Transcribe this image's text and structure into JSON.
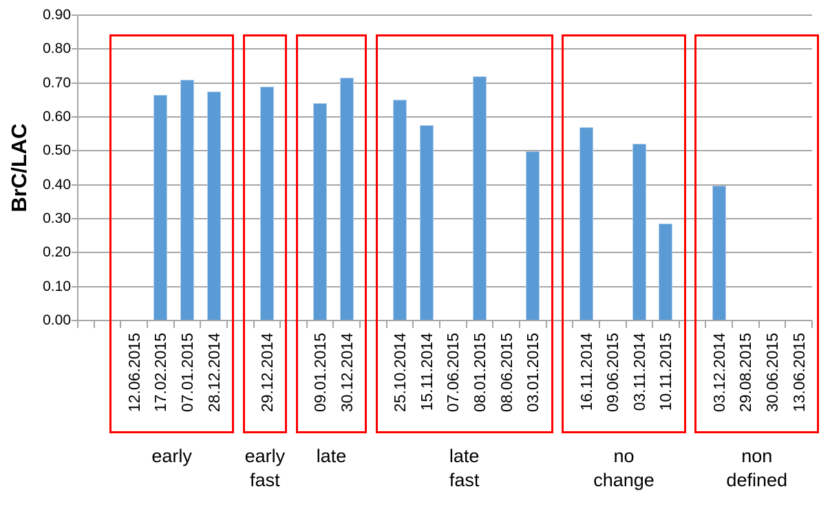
{
  "chart_data": {
    "type": "bar",
    "title": "",
    "xlabel": "",
    "ylabel": "BrC/LAC",
    "ylim": [
      0,
      0.9
    ],
    "ytick_labels": [
      "0.00",
      "0.10",
      "0.20",
      "0.30",
      "0.40",
      "0.50",
      "0.60",
      "0.70",
      "0.80",
      "0.90"
    ],
    "grid": true,
    "legend_position": "none",
    "colors": {
      "bar_fill": "#5B9BD5",
      "bar_border": "#AECDEA",
      "group_box": "#FF0000",
      "axis_gray": "#A6A6A6",
      "text": "#000000"
    },
    "groups": [
      {
        "label": "early",
        "label_lines": [
          "early"
        ],
        "categories": [
          "12.06.2015",
          "17.02.2015",
          "07.01.2015",
          "28.12.2014"
        ],
        "values": [
          0,
          0.665,
          0.71,
          0.675
        ]
      },
      {
        "label": "early fast",
        "label_lines": [
          "early",
          "fast"
        ],
        "categories": [
          "29.12.2014"
        ],
        "values": [
          0.69
        ]
      },
      {
        "label": "late",
        "label_lines": [
          "late"
        ],
        "categories": [
          "09.01.2015",
          "30.12.2014"
        ],
        "values": [
          0.64,
          0.715
        ]
      },
      {
        "label": "late fast",
        "label_lines": [
          "late",
          "fast"
        ],
        "categories": [
          "25.10.2014",
          "15.11.2014",
          "07.06.2015",
          "08.01.2015",
          "08.06.2015",
          "03.01.2015"
        ],
        "values": [
          0.65,
          0.575,
          0,
          0.72,
          0,
          0.498
        ]
      },
      {
        "label": "no change",
        "label_lines": [
          "no",
          "change"
        ],
        "categories": [
          "16.11.2014",
          "09.06.2015",
          "03.11.2014",
          "10.11.2015"
        ],
        "values": [
          0.57,
          0,
          0.52,
          0.285
        ]
      },
      {
        "label": "non defined",
        "label_lines": [
          "non",
          "defined"
        ],
        "categories": [
          "03.12.2014",
          "29.08.2015",
          "30.06.2015",
          "13.06.2015"
        ],
        "values": [
          0.398,
          0,
          0,
          0
        ]
      }
    ]
  }
}
